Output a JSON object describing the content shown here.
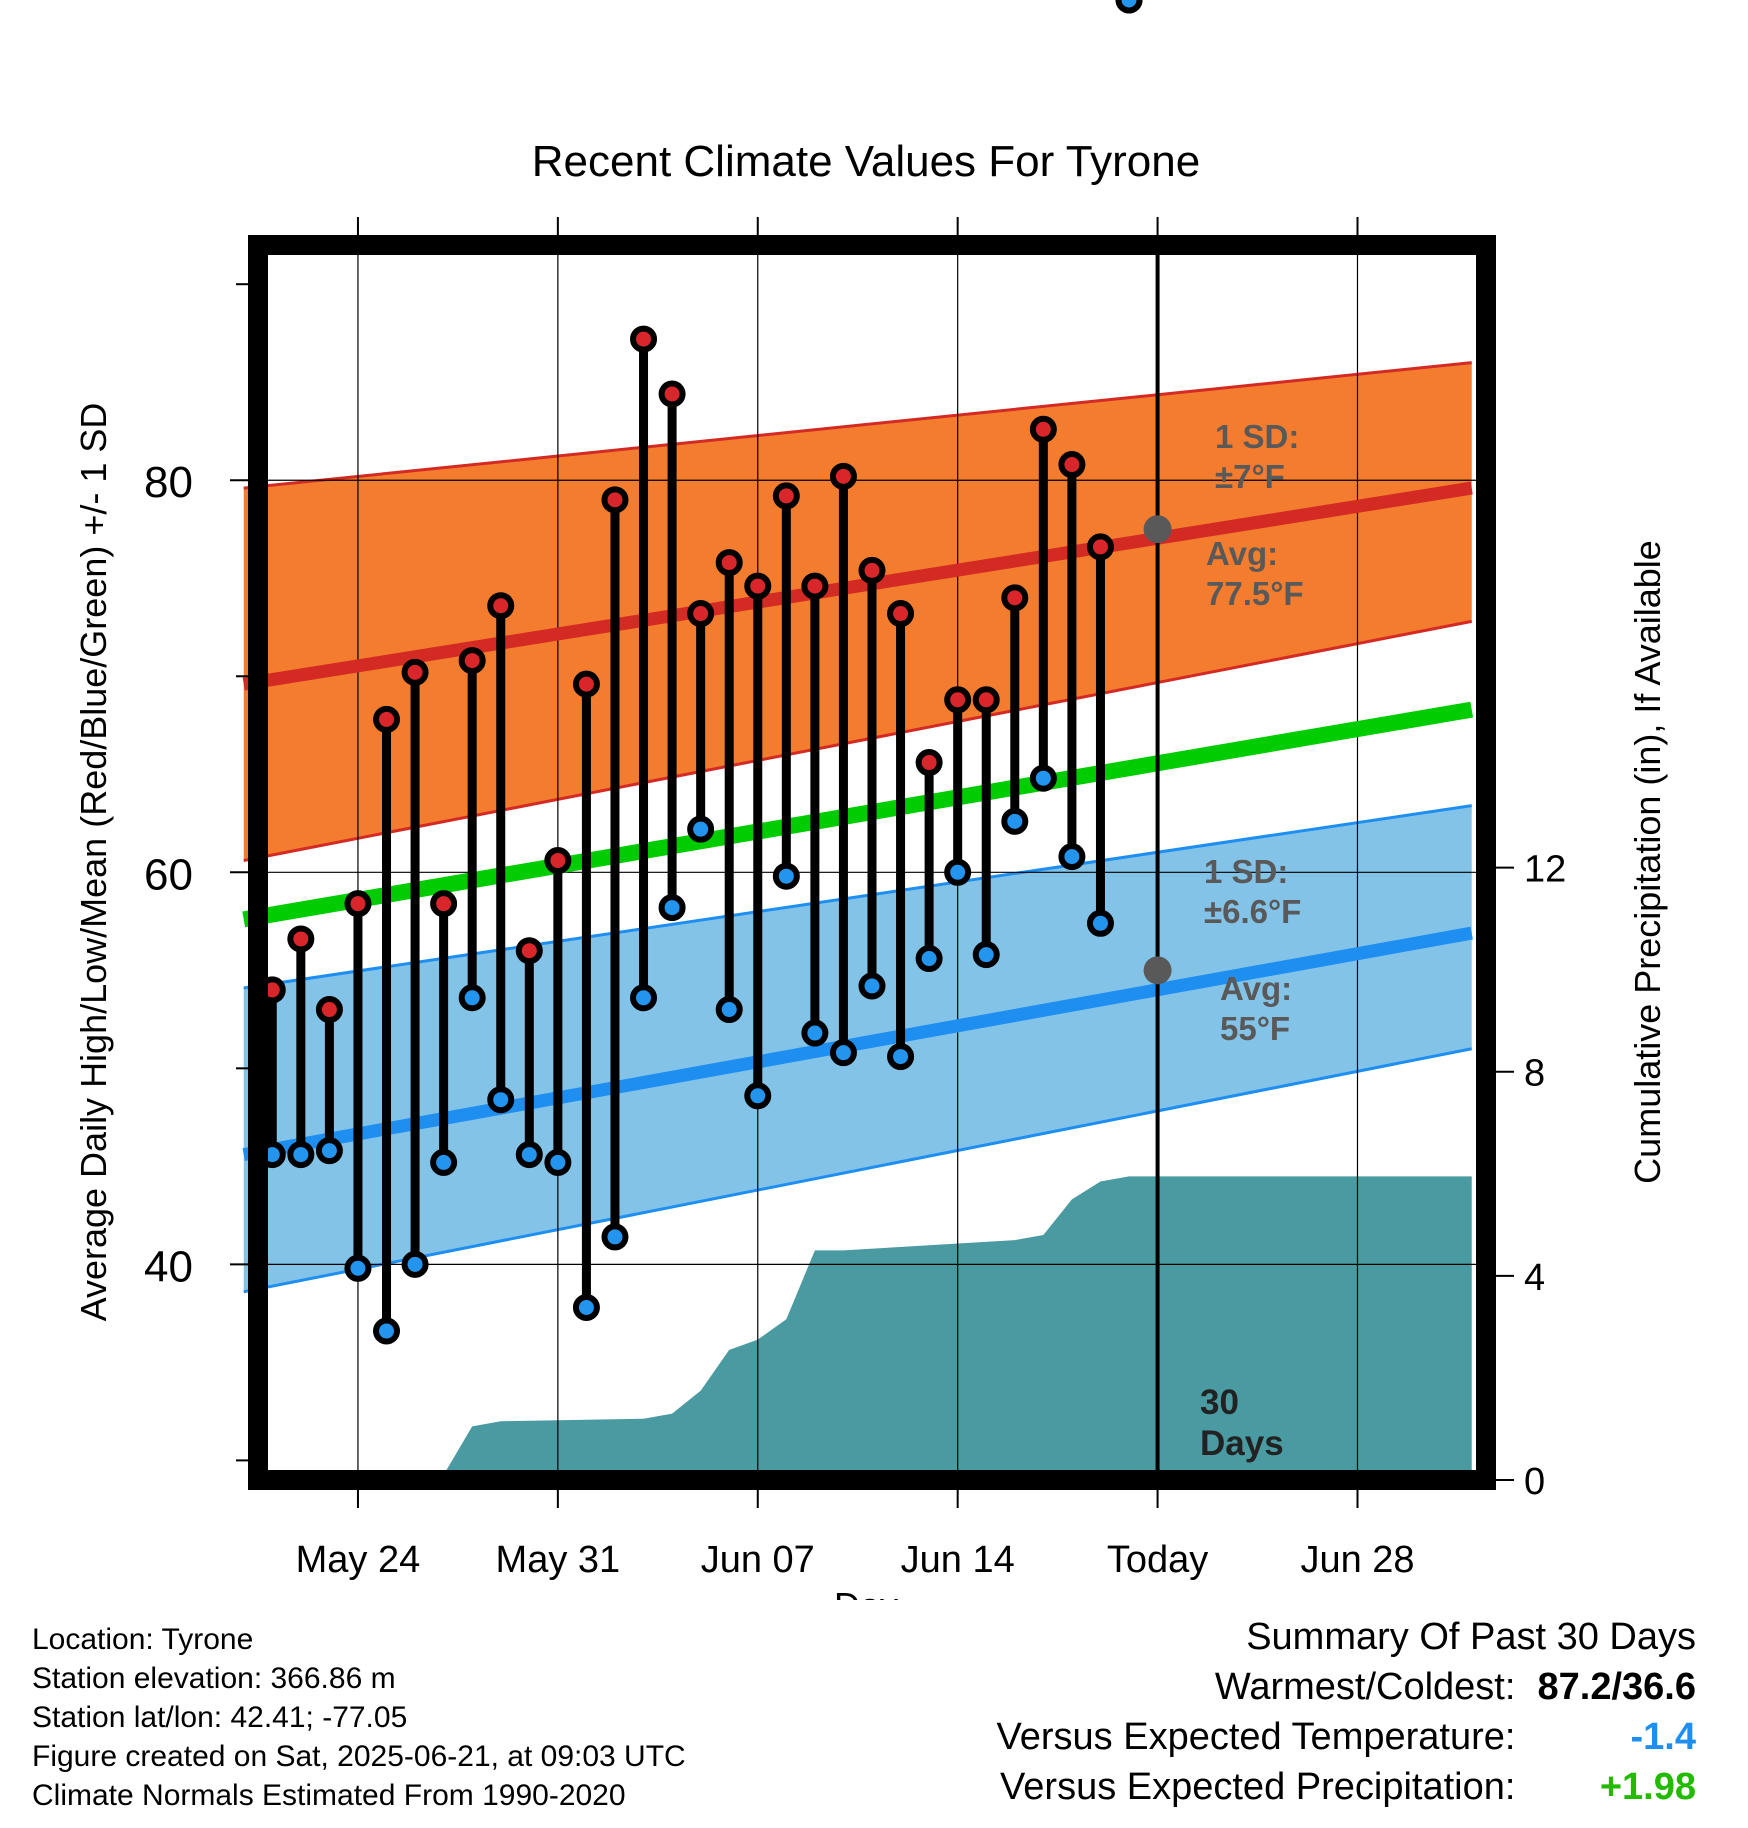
{
  "chart_data": {
    "type": "line",
    "title": "Recent Climate Values For Tyrone",
    "xlabel": "Day",
    "ylabel": "Average Daily High/Low/Mean (Red/Blue/Green) +/- 1 SD",
    "y2label": "Cumulative Precipitation (in), If Available",
    "x_tick_labels": [
      "May 24",
      "May 31",
      "Jun 07",
      "Jun 14",
      "Today",
      "Jun 28"
    ],
    "x_tick_dates": [
      "2025-05-24",
      "2025-05-31",
      "2025-06-07",
      "2025-06-14",
      "2025-06-21",
      "2025-06-28"
    ],
    "y_ticks": [
      40,
      60,
      80
    ],
    "y_minor_ticks": [
      30,
      50,
      70,
      90
    ],
    "ylim": [
      29,
      92
    ],
    "y2_ticks": [
      0,
      4,
      8,
      12
    ],
    "y2lim": [
      0,
      24.2
    ],
    "xlim": [
      "2025-05-20T12:00",
      "2025-07-02T12:00"
    ],
    "grid": true,
    "today": "2025-06-21",
    "today_label": "30 Days",
    "dates": [
      "2025-05-21",
      "2025-05-22",
      "2025-05-23",
      "2025-05-24",
      "2025-05-25",
      "2025-05-26",
      "2025-05-27",
      "2025-05-28",
      "2025-05-29",
      "2025-05-30",
      "2025-05-31",
      "2025-06-01",
      "2025-06-02",
      "2025-06-03",
      "2025-06-04",
      "2025-06-05",
      "2025-06-06",
      "2025-06-07",
      "2025-06-08",
      "2025-06-09",
      "2025-06-10",
      "2025-06-11",
      "2025-06-12",
      "2025-06-13",
      "2025-06-14",
      "2025-06-15",
      "2025-06-16",
      "2025-06-17",
      "2025-06-18",
      "2025-06-19",
      "2025-06-20"
    ],
    "highs": [
      54.0,
      56.6,
      53.0,
      58.4,
      67.8,
      70.2,
      58.4,
      70.8,
      73.6,
      56.0,
      60.6,
      69.6,
      79.0,
      87.2,
      84.4,
      73.2,
      75.8,
      74.6,
      79.2,
      74.6,
      80.2,
      75.4,
      73.2,
      65.6,
      68.8,
      68.8,
      74.0,
      82.6,
      80.8,
      76.6
    ],
    "lows": [
      45.6,
      45.6,
      45.8,
      39.8,
      36.6,
      40.0,
      45.2,
      53.6,
      48.4,
      45.6,
      45.2,
      37.8,
      41.4,
      53.6,
      58.2,
      62.2,
      53.0,
      48.6,
      59.8,
      51.8,
      50.8,
      54.2,
      50.6,
      55.6,
      60.0,
      55.8,
      62.6,
      64.8,
      60.8,
      57.4
    ],
    "normals": {
      "dates": [
        "2025-05-20",
        "2025-07-02"
      ],
      "high_avg": [
        69.6,
        79.6
      ],
      "high_sd_upper": [
        79.6,
        86.0
      ],
      "high_sd_lower": [
        60.6,
        72.8
      ],
      "low_avg": [
        45.6,
        56.9
      ],
      "low_sd_upper": [
        54.1,
        63.4
      ],
      "low_sd_lower": [
        38.6,
        51.0
      ],
      "mean_avg": [
        57.6,
        68.3
      ]
    },
    "precip_cumulative": {
      "dates": [
        "2025-05-20",
        "2025-05-23",
        "2025-05-24",
        "2025-05-26",
        "2025-05-27",
        "2025-05-28",
        "2025-05-29",
        "2025-06-03",
        "2025-06-04",
        "2025-06-05",
        "2025-06-06",
        "2025-06-07",
        "2025-06-08",
        "2025-06-09",
        "2025-06-10",
        "2025-06-16",
        "2025-06-17",
        "2025-06-18",
        "2025-06-19",
        "2025-06-20",
        "2025-07-02"
      ],
      "values": [
        0,
        0,
        0.05,
        0.1,
        0.1,
        1.05,
        1.15,
        1.2,
        1.3,
        1.75,
        2.55,
        2.75,
        3.15,
        4.5,
        4.5,
        4.7,
        4.8,
        5.5,
        5.85,
        5.95,
        5.95
      ]
    },
    "annotations": {
      "high_sd_label": [
        "1 SD:",
        "±7°F"
      ],
      "high_avg_label": [
        "Avg:",
        "77.5°F"
      ],
      "low_sd_label": [
        "1 SD:",
        "±6.6°F"
      ],
      "low_avg_label": [
        "Avg:",
        "55°F"
      ],
      "today_high_avg": 77.5,
      "today_low_avg": 55
    },
    "colors": {
      "high_band": "#f37c2f",
      "high_line": "#d42a24",
      "high_marker": "#d9262a",
      "low_band": "#84c3e8",
      "low_line": "#1e8ff0",
      "low_marker": "#2395ee",
      "mean_line": "#00cc00",
      "precip": "#4a9aa2",
      "annotation": "#595959"
    }
  },
  "footer": {
    "location": "Location: Tyrone",
    "elevation": "Station elevation: 366.86 m",
    "latlon": "Station lat/lon: 42.41; -77.05",
    "created": "Figure created on Sat, 2025-06-21, at 09:03 UTC",
    "normals": "Climate Normals Estimated From 1990-2020"
  },
  "summary": {
    "title": "Summary Of Past 30 Days",
    "warmest_label": "Warmest/Coldest:",
    "warmest_value": "87.2/36.6",
    "temp_label": "Versus Expected Temperature:",
    "temp_value": "-1.4",
    "temp_color": "#1e8ff0",
    "precip_label": "Versus Expected Precipitation:",
    "precip_value": "+1.98",
    "precip_color": "#22bb00"
  }
}
